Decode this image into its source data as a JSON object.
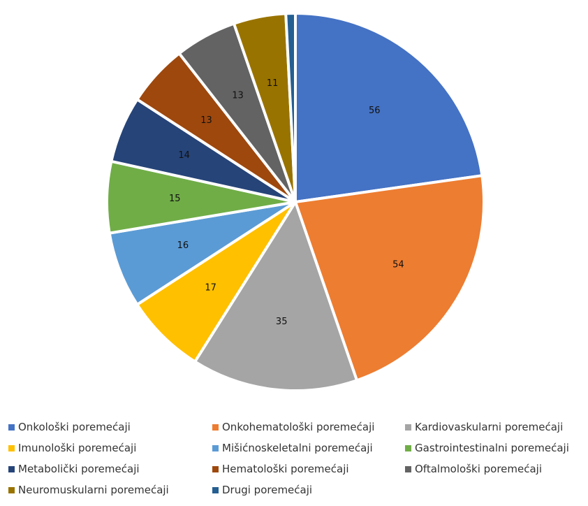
{
  "chart_data": {
    "type": "pie",
    "title": "",
    "start_angle_deg": 0,
    "direction": "clockwise",
    "slices": [
      {
        "label": "Onkološki poremećaji",
        "value": 56,
        "color": "#4472C4"
      },
      {
        "label": "Onkohematološki poremećaji",
        "value": 54,
        "color": "#ED7D31"
      },
      {
        "label": "Kardiovaskularni poremećaji",
        "value": 35,
        "color": "#A5A5A5"
      },
      {
        "label": "Imunološki poremećaji",
        "value": 17,
        "color": "#FFC000"
      },
      {
        "label": "Mišićnoskeletalni poremećaji",
        "value": 16,
        "color": "#5B9BD5"
      },
      {
        "label": "Gastrointestinalni poremećaji",
        "value": 15,
        "color": "#70AD47"
      },
      {
        "label": "Metabolički poremećaji",
        "value": 14,
        "color": "#264478"
      },
      {
        "label": "Hematološki poremećaji",
        "value": 13,
        "color": "#9E480E"
      },
      {
        "label": "Oftalmološki poremećaji",
        "value": 13,
        "color": "#636363"
      },
      {
        "label": "Neuromuskularni poremećaji",
        "value": 11,
        "color": "#997300"
      },
      {
        "label": "Drugi poremećaji",
        "value": 2,
        "color": "#255E91"
      }
    ],
    "data_labels_shown": [
      56,
      54,
      35,
      17,
      16,
      15,
      14,
      13,
      13,
      11
    ],
    "legend_position": "bottom"
  }
}
